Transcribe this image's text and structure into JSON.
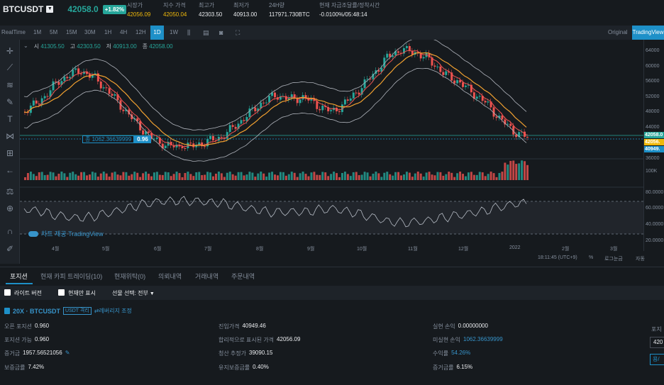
{
  "ticker": {
    "symbol": "BTCUSDT",
    "price": "42058.0",
    "change": "+1.82%",
    "stats": [
      {
        "label": "시장가",
        "value": "42056.09",
        "color": "#f0b90b"
      },
      {
        "label": "지수 가격",
        "value": "42050.04",
        "color": "#f0b90b"
      },
      {
        "label": "최고가",
        "value": "42303.50",
        "color": "#eaecef"
      },
      {
        "label": "최저가",
        "value": "40913.00",
        "color": "#eaecef"
      },
      {
        "label": "24H량",
        "value": "117971.730BTC",
        "color": "#eaecef"
      },
      {
        "label": "현재 자금조달률/정착시간",
        "value": "-0.0100%/05:48:14",
        "color": "#eaecef"
      }
    ]
  },
  "toolbar": {
    "realtime": "RealTime",
    "intervals": [
      "1M",
      "5M",
      "15M",
      "30M",
      "1H",
      "4H",
      "12H",
      "1D",
      "1W"
    ],
    "active_interval": "1D",
    "icons": [
      "candle-style-icon",
      "indicator-icon",
      "camera-icon",
      "fullscreen-icon"
    ],
    "original": "Original",
    "tradingview": "TradingView"
  },
  "drawing_tools": [
    "crosshair-icon",
    "trendline-icon",
    "fib-icon",
    "brush-icon",
    "text-icon",
    "pattern-icon",
    "ruler-icon",
    "back-arrow-icon",
    "measure-icon",
    "zoom-in-icon",
    "magnet-icon",
    "lock-icon"
  ],
  "legend": {
    "open_label": "시",
    "open": "41305.50",
    "high_label": "고",
    "high": "42303.50",
    "low_label": "저",
    "low": "40913.00",
    "close_label": "종",
    "close": "42058.00"
  },
  "position_line": {
    "label": "종 1062.36639999",
    "qty": "0.96"
  },
  "watermark": "차트 제공 TradingView",
  "price_axis": {
    "ticks": [
      "64000",
      "60000",
      "56000",
      "52000",
      "48000",
      "44000",
      "40000",
      "36000"
    ],
    "volume_tick": "100K",
    "rsi_ticks": [
      "80.0000",
      "60.0000",
      "40.0000",
      "20.0000"
    ],
    "tags": [
      {
        "text": "42058.0",
        "color": "#26a69a"
      },
      {
        "text": "42056.",
        "color": "#f0b90b"
      },
      {
        "text": "40949.",
        "color": "#1e90c8"
      }
    ]
  },
  "time_axis": [
    "4월",
    "5월",
    "6월",
    "7월",
    "8월",
    "9월",
    "10월",
    "11월",
    "12월",
    "2022",
    "2월",
    "3월"
  ],
  "status": {
    "clock": "18:11:45 (UTC+9)",
    "percent": "%",
    "log": "로그눈금",
    "auto": "자동"
  },
  "panel": {
    "tabs": [
      "포지션",
      "현재 카피 트레이딩(10)",
      "현재위탁(0)",
      "의뢰내역",
      "거래내역",
      "주문내역"
    ],
    "filters": {
      "lite": "라이트 버전",
      "current_only": "현재만 표시",
      "select_label": "선물 선택: 전부"
    },
    "position": {
      "symbol": "20X · BTCUSDT",
      "margin_mode": "USDT 격리",
      "leverage_link": "레버리지 조정",
      "fields": [
        {
          "label": "오픈 포지션",
          "value": "0.960"
        },
        {
          "label": "포지션 가능",
          "value": "0.960"
        },
        {
          "label": "증거금",
          "value": "1957.56521056"
        },
        {
          "label": "보증금률",
          "value": "7.42%"
        },
        {
          "label": "진입가격",
          "value": "40949.46"
        },
        {
          "label": "합리적으로 표시된 가격",
          "value": "42056.09"
        },
        {
          "label": "청산 추정가",
          "value": "39090.15"
        },
        {
          "label": "유지보증금률",
          "value": "0.40%"
        },
        {
          "label": "실현 손익",
          "value": "0.00000000"
        },
        {
          "label": "미실현 손익",
          "value": "1062.36639999"
        },
        {
          "label": "수익률",
          "value": "54.26%"
        },
        {
          "label": "증거금률",
          "value": "6.15%"
        }
      ]
    },
    "side": {
      "label": "포지",
      "input": "420",
      "button": "용/"
    }
  },
  "colors": {
    "up": "#26a69a",
    "down": "#ef5350",
    "accent": "#1e90c8",
    "ma_fast": "#ef5350",
    "ma_slow": "#f0a030",
    "bands": "#b0b4bc"
  }
}
